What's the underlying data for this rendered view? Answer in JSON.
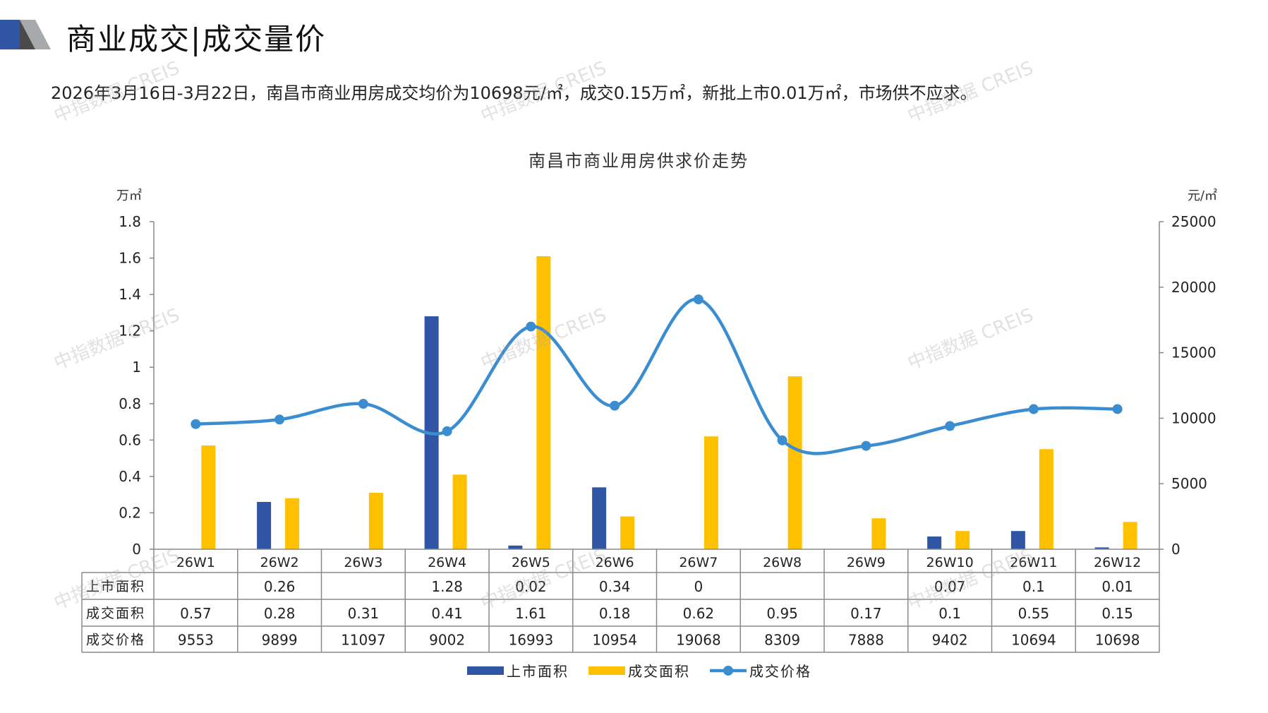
{
  "header": {
    "title": "商业成交|成交量价",
    "summary": "2026年3月16日-3月22日，南昌市商业用房成交均价为10698元/㎡，成交0.15万㎡，新批上市0.01万㎡，市场供不应求。"
  },
  "watermark": "中指数据 CREIS",
  "colors": {
    "listing": "#2F55A4",
    "deal_area": "#FFC000",
    "price": "#3B8DD1",
    "grid": "#777777"
  },
  "chart_data": {
    "type": "bar",
    "title": "南昌市商业用房供求价走势",
    "y_left_unit": "万㎡",
    "y_right_unit": "元/㎡",
    "y_left_ticks": [
      "0",
      "0.2",
      "0.4",
      "0.6",
      "0.8",
      "1",
      "1.2",
      "1.4",
      "1.6",
      "1.8"
    ],
    "y_right_ticks": [
      "0",
      "5000",
      "10000",
      "15000",
      "20000",
      "25000"
    ],
    "ylim_left": [
      0,
      1.8
    ],
    "ylim_right": [
      0,
      25000
    ],
    "categories": [
      "26W1",
      "26W2",
      "26W3",
      "26W4",
      "26W5",
      "26W6",
      "26W7",
      "26W8",
      "26W9",
      "26W10",
      "26W11",
      "26W12"
    ],
    "series": [
      {
        "name": "上市面积",
        "type": "bar",
        "axis": "left",
        "values": [
          null,
          0.26,
          null,
          1.28,
          0.02,
          0.34,
          0,
          null,
          null,
          0.07,
          0.1,
          0.01
        ]
      },
      {
        "name": "成交面积",
        "type": "bar",
        "axis": "left",
        "values": [
          0.57,
          0.28,
          0.31,
          0.41,
          1.61,
          0.18,
          0.62,
          0.95,
          0.17,
          0.1,
          0.55,
          0.15
        ]
      },
      {
        "name": "成交价格",
        "type": "line",
        "axis": "right",
        "values": [
          9553,
          9899,
          11097,
          9002,
          16993,
          10954,
          19068,
          8309,
          7888,
          9402,
          10694,
          10698
        ]
      }
    ],
    "table_labels": {
      "listing": [
        "",
        "0.26",
        "",
        "1.28",
        "0.02",
        "0.34",
        "0",
        "",
        "",
        "0.07",
        "0.1",
        "0.01"
      ],
      "deal_area": [
        "0.57",
        "0.28",
        "0.31",
        "0.41",
        "1.61",
        "0.18",
        "0.62",
        "0.95",
        "0.17",
        "0.1",
        "0.55",
        "0.15"
      ],
      "price": [
        "9553",
        "9899",
        "11097",
        "9002",
        "16993",
        "10954",
        "19068",
        "8309",
        "7888",
        "9402",
        "10694",
        "10698"
      ]
    },
    "legend_position": "bottom",
    "grid": false
  }
}
